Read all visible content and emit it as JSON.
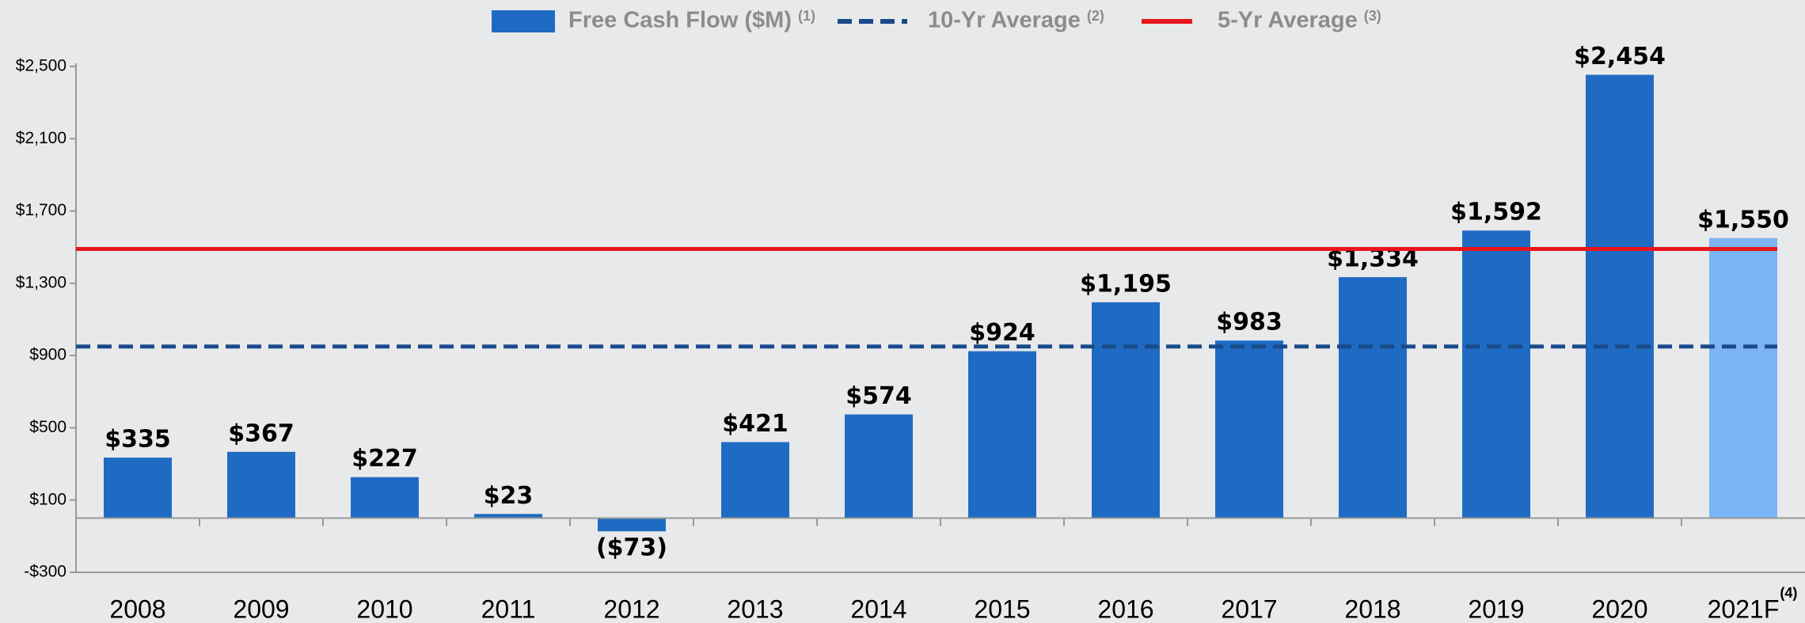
{
  "chart_data": {
    "type": "bar",
    "categories": [
      "2008",
      "2009",
      "2010",
      "2011",
      "2012",
      "2013",
      "2014",
      "2015",
      "2016",
      "2017",
      "2018",
      "2019",
      "2020",
      "2021F"
    ],
    "category_notes": [
      null,
      null,
      null,
      null,
      null,
      null,
      null,
      null,
      null,
      null,
      null,
      null,
      null,
      "(4)"
    ],
    "series": [
      {
        "name": "Free Cash Flow ($M)",
        "note": "(1)",
        "color": "#1f6bc4",
        "forecast_color": "#7ab4f5",
        "values": [
          335,
          367,
          227,
          23,
          -73,
          421,
          574,
          924,
          1195,
          983,
          1334,
          1592,
          2454,
          1550
        ],
        "value_labels": [
          "$335",
          "$367",
          "$227",
          "$23",
          "($73)",
          "$421",
          "$574",
          "$924",
          "$1,195",
          "$983",
          "$1,334",
          "$1,592",
          "$2,454",
          "$1,550"
        ]
      },
      {
        "name": "10-Yr Average",
        "note": "(2)",
        "color": "#1a4a8a",
        "style": "dashed",
        "value": 950
      },
      {
        "name": "5-Yr Average",
        "note": "(3)",
        "color": "#e8161b",
        "style": "solid",
        "value": 1490
      }
    ],
    "negative_label_color": "#e8161b",
    "ylim": [
      -300,
      2500
    ],
    "yticks": [
      {
        "value": -300,
        "label": "-$300"
      },
      {
        "value": 100,
        "label": "$100"
      },
      {
        "value": 500,
        "label": "$500"
      },
      {
        "value": 900,
        "label": "$900"
      },
      {
        "value": 1300,
        "label": "$1,300"
      },
      {
        "value": 1700,
        "label": "$1,700"
      },
      {
        "value": 2100,
        "label": "$2,100"
      },
      {
        "value": 2500,
        "label": "$2,500"
      }
    ],
    "grid": false
  }
}
